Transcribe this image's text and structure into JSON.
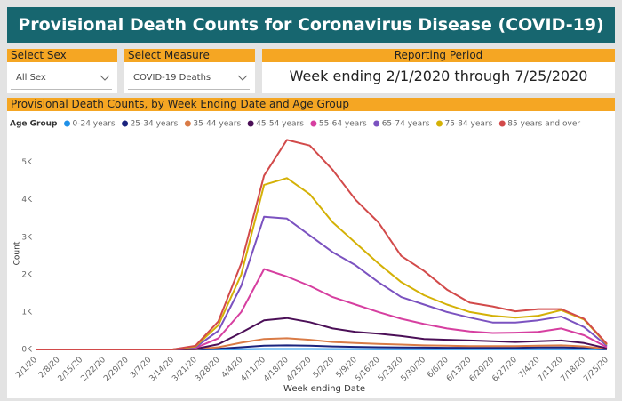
{
  "header": {
    "title": "Provisional Death Counts for Coronavirus Disease (COVID-19)"
  },
  "filters": [
    {
      "label": "Select Sex",
      "value": "All Sex"
    },
    {
      "label": "Select Measure",
      "value": "COVID-19 Deaths"
    }
  ],
  "reporting_period": {
    "label": "Reporting Period",
    "value": "Week ending 2/1/2020 through 7/25/2020"
  },
  "chart_data": {
    "type": "line",
    "title": "Provisional Death Counts, by Week Ending Date and Age Group",
    "legend_title": "Age Group",
    "x_label": "Week ending Date",
    "y_label": "Count",
    "categories": [
      "2/1/20",
      "2/8/20",
      "2/15/20",
      "2/22/20",
      "2/29/20",
      "3/7/20",
      "3/14/20",
      "3/21/20",
      "3/28/20",
      "4/4/20",
      "4/11/20",
      "4/18/20",
      "4/25/20",
      "5/2/20",
      "5/9/20",
      "5/16/20",
      "5/23/20",
      "5/30/20",
      "6/6/20",
      "6/13/20",
      "6/20/20",
      "6/27/20",
      "7/4/20",
      "7/11/20",
      "7/18/20",
      "7/25/20"
    ],
    "ylim": [
      0,
      5800
    ],
    "yticks": [
      {
        "value": 0,
        "label": "0K"
      },
      {
        "value": 1000,
        "label": "1K"
      },
      {
        "value": 2000,
        "label": "2K"
      },
      {
        "value": 3000,
        "label": "3K"
      },
      {
        "value": 4000,
        "label": "4K"
      },
      {
        "value": 5000,
        "label": "5K"
      }
    ],
    "grid": false,
    "series": [
      {
        "name": "0-24 years",
        "color": "#1e90e8",
        "values": [
          0,
          0,
          0,
          0,
          0,
          0,
          0,
          0,
          3,
          8,
          12,
          13,
          12,
          10,
          9,
          8,
          8,
          8,
          7,
          7,
          7,
          7,
          8,
          8,
          6,
          1
        ]
      },
      {
        "name": "25-34 years",
        "color": "#1a237e",
        "values": [
          0,
          0,
          0,
          0,
          0,
          0,
          0,
          2,
          20,
          60,
          100,
          110,
          100,
          80,
          70,
          60,
          55,
          50,
          45,
          45,
          45,
          45,
          55,
          55,
          40,
          5
        ]
      },
      {
        "name": "35-44 years",
        "color": "#d97b46",
        "values": [
          0,
          0,
          0,
          0,
          0,
          0,
          0,
          5,
          60,
          180,
          280,
          300,
          260,
          200,
          170,
          150,
          130,
          110,
          100,
          90,
          90,
          90,
          100,
          110,
          80,
          15
        ]
      },
      {
        "name": "45-54 years",
        "color": "#4b0f57",
        "values": [
          0,
          0,
          0,
          0,
          0,
          0,
          0,
          15,
          140,
          450,
          780,
          840,
          730,
          560,
          470,
          420,
          360,
          280,
          260,
          240,
          220,
          200,
          220,
          240,
          170,
          30
        ]
      },
      {
        "name": "55-64 years",
        "color": "#d63fa0",
        "values": [
          0,
          0,
          0,
          0,
          0,
          0,
          0,
          40,
          300,
          1000,
          2150,
          1950,
          1700,
          1400,
          1200,
          1000,
          820,
          680,
          560,
          480,
          440,
          450,
          470,
          560,
          380,
          60
        ]
      },
      {
        "name": "65-74 years",
        "color": "#7b52c0",
        "values": [
          0,
          0,
          0,
          0,
          0,
          0,
          0,
          60,
          500,
          1700,
          3550,
          3500,
          3050,
          2600,
          2250,
          1800,
          1400,
          1200,
          1000,
          850,
          720,
          720,
          780,
          880,
          600,
          100
        ]
      },
      {
        "name": "75-84 years",
        "color": "#d4b106",
        "values": [
          0,
          0,
          0,
          0,
          0,
          0,
          0,
          80,
          650,
          2000,
          4400,
          4580,
          4150,
          3400,
          2850,
          2300,
          1800,
          1450,
          1200,
          1000,
          900,
          850,
          900,
          1050,
          800,
          130
        ]
      },
      {
        "name": "85 years and over",
        "color": "#d24a4a",
        "values": [
          0,
          0,
          0,
          0,
          0,
          0,
          0,
          100,
          750,
          2300,
          4650,
          5600,
          5450,
          4800,
          4000,
          3400,
          2500,
          2100,
          1600,
          1250,
          1150,
          1020,
          1080,
          1080,
          820,
          150
        ]
      }
    ]
  }
}
